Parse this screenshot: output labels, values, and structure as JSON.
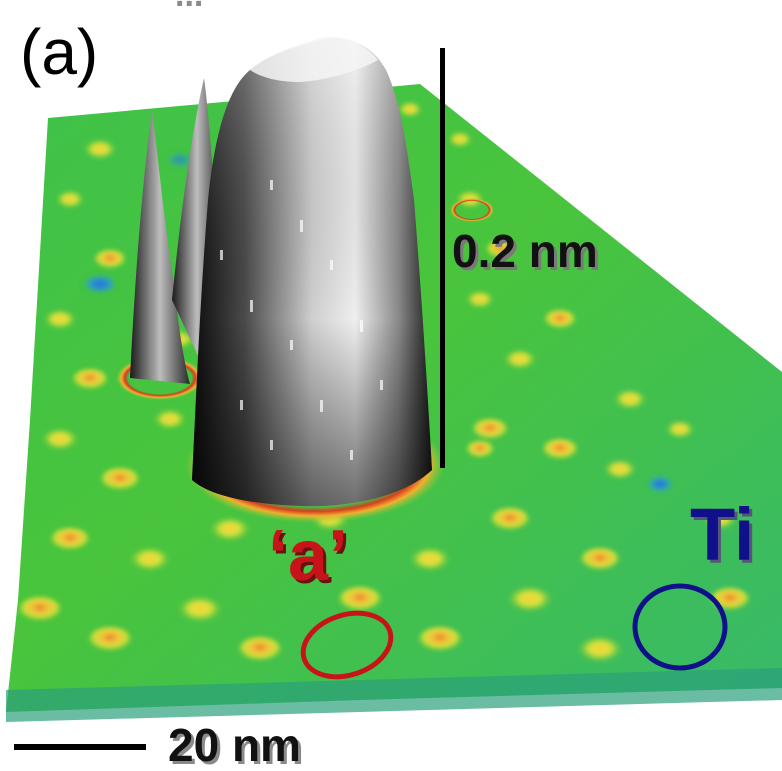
{
  "panel_label": "(a)",
  "top_caption_fragment": "...",
  "height_scale_label": "0.2 nm",
  "lateral_scale_label": "20 nm",
  "marker_a_label": "‘a’",
  "marker_ti_label": "Ti",
  "colors": {
    "surface_base": "#3fbf3a",
    "surface_dark": "#2a9a5a",
    "bump_top": "#f2e23a",
    "bump_peak": "#e07a2a",
    "pillar_light": "#eeeeee",
    "pillar_dark": "#1a1a1a",
    "marker_a": "#c81418",
    "marker_ti": "#10108a",
    "scale_bar": "#000000"
  }
}
